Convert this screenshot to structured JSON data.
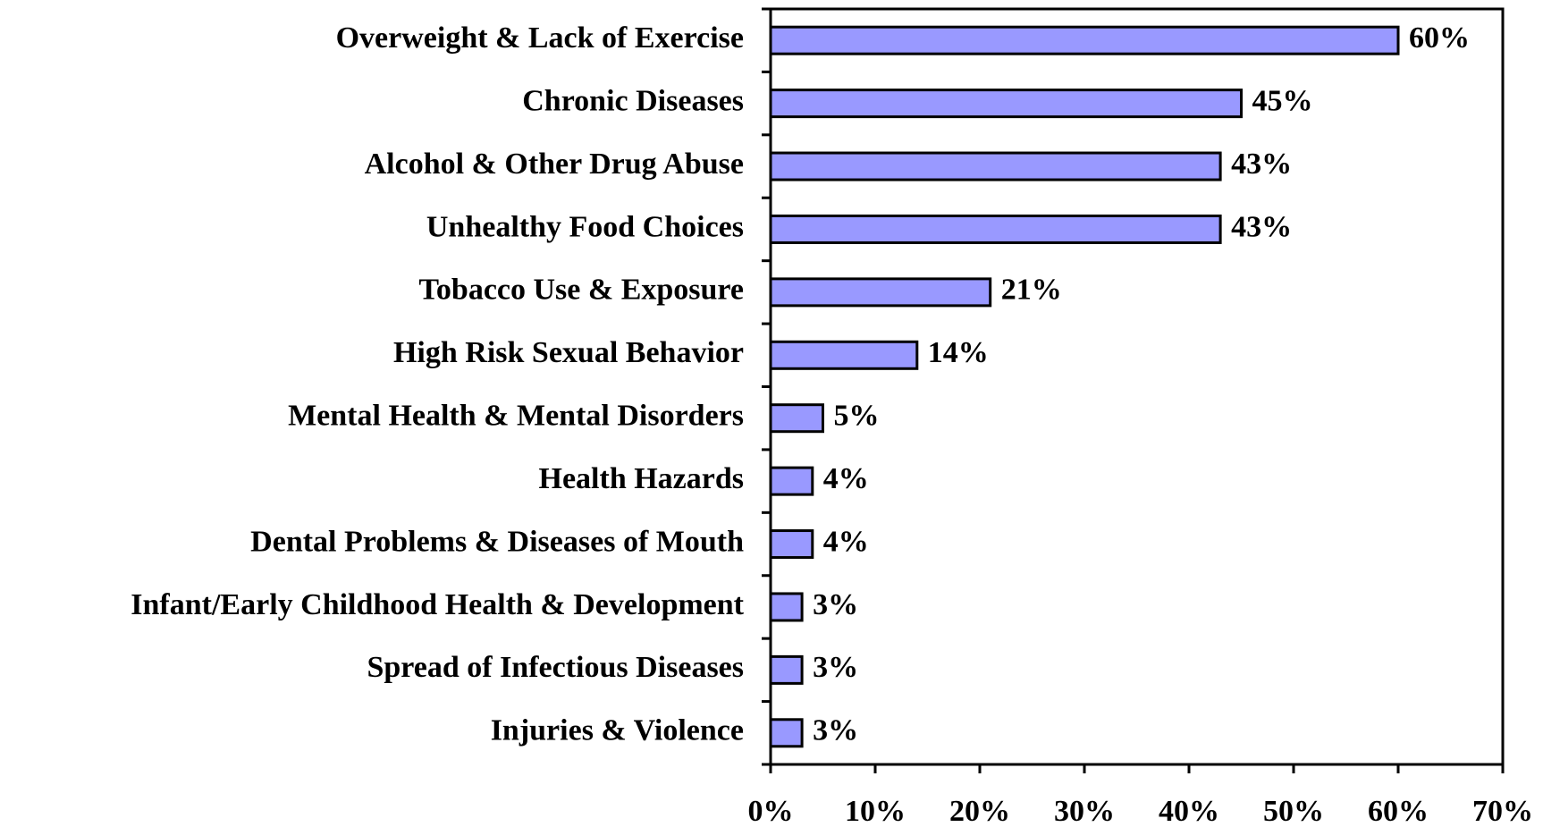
{
  "chart_data": {
    "type": "hbar",
    "categories": [
      "Overweight & Lack of Exercise",
      "Chronic Diseases",
      "Alcohol & Other Drug Abuse",
      "Unhealthy Food Choices",
      "Tobacco Use & Exposure",
      "High Risk Sexual Behavior",
      "Mental Health & Mental Disorders",
      "Health Hazards",
      "Dental Problems & Diseases of Mouth",
      "Infant/Early Childhood Health & Development",
      "Spread of Infectious Diseases",
      "Injuries & Violence"
    ],
    "values": [
      60,
      45,
      43,
      43,
      21,
      14,
      5,
      4,
      4,
      3,
      3,
      3
    ],
    "value_labels": [
      "60%",
      "45%",
      "43%",
      "43%",
      "21%",
      "14%",
      "5%",
      "4%",
      "4%",
      "3%",
      "3%",
      "3%"
    ],
    "color": "#9999ff",
    "xlim": [
      0,
      70
    ],
    "xticks": [
      {
        "value": 0,
        "label": "0%"
      },
      {
        "value": 10,
        "label": "10%"
      },
      {
        "value": 20,
        "label": "20%"
      },
      {
        "value": 30,
        "label": "30%"
      },
      {
        "value": 40,
        "label": "40%"
      },
      {
        "value": 50,
        "label": "50%"
      },
      {
        "value": 60,
        "label": "60%"
      },
      {
        "value": 70,
        "label": "70%"
      }
    ],
    "grid": false
  }
}
